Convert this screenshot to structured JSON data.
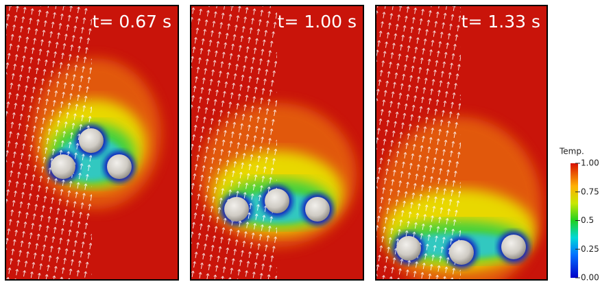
{
  "panels": [
    {
      "label": "t= 0.67 s"
    },
    {
      "label": "t= 1.00 s"
    },
    {
      "label": "t= 1.33 s"
    }
  ],
  "colorbar": {
    "title": "Temp.",
    "ylim": [
      0,
      1
    ],
    "ticks": [
      {
        "value": 0,
        "label": "0.00"
      },
      0.25,
      0.5,
      0.75,
      {
        "value": 1,
        "label": "1.00"
      }
    ]
  }
}
